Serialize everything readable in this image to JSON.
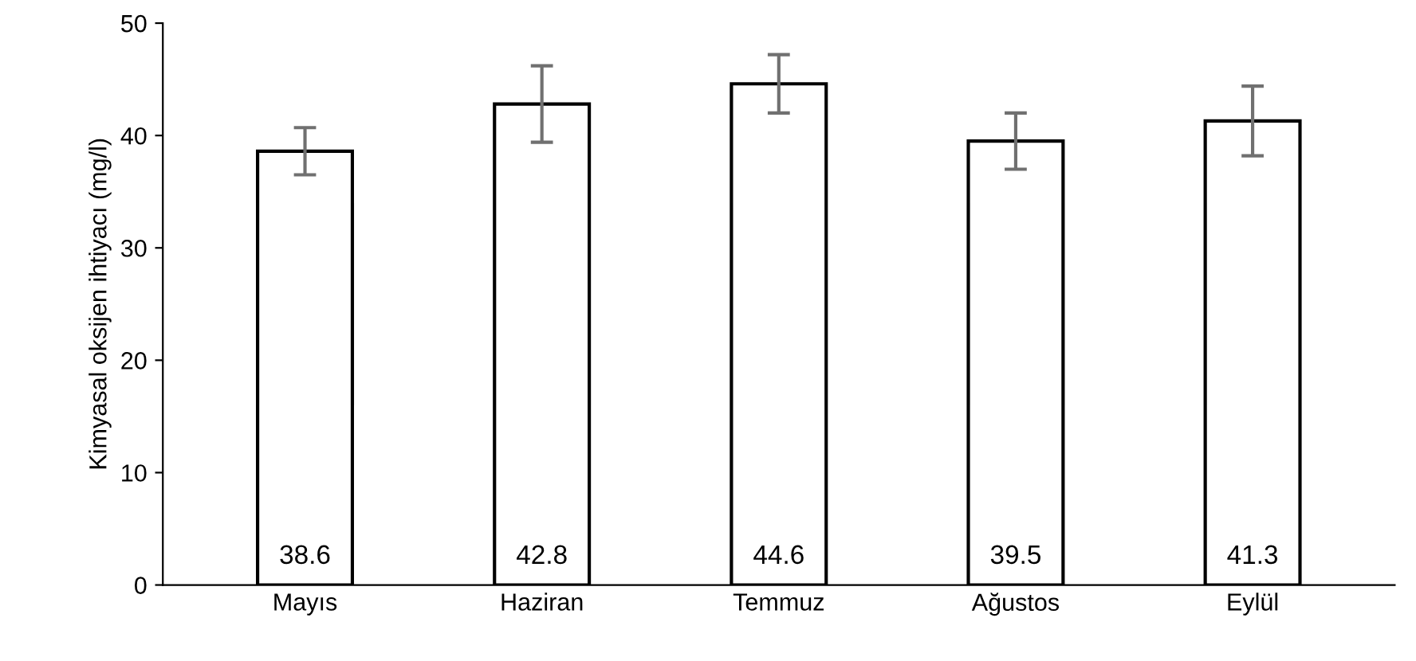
{
  "chart_data": {
    "type": "bar",
    "ylabel": "Kimyasal oksijen ihtiyacı (mg/l)",
    "categories": [
      "Mayıs",
      "Haziran",
      "Temmuz",
      "Ağustos",
      "Eylül"
    ],
    "values": [
      38.6,
      42.8,
      44.6,
      39.5,
      41.3
    ],
    "errors": [
      2.1,
      3.4,
      2.6,
      2.5,
      3.1
    ],
    "color": "#ffffff",
    "ylim": [
      0,
      50
    ],
    "yticks": [
      0,
      10,
      20,
      30,
      40,
      50
    ],
    "data_labels": true,
    "grid": false
  }
}
